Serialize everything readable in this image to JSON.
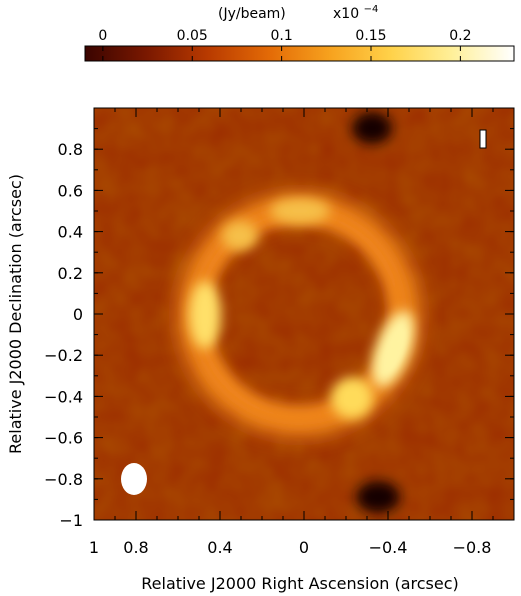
{
  "colorbar": {
    "unit_label": "(Jy/beam)",
    "scale_label": "x10",
    "scale_exponent": "−4",
    "ticks": [
      {
        "value": 0,
        "label": "0"
      },
      {
        "value": 0.05,
        "label": "0.05"
      },
      {
        "value": 0.1,
        "label": "0.1"
      },
      {
        "value": 0.15,
        "label": "0.15"
      },
      {
        "value": 0.2,
        "label": "0.2"
      }
    ],
    "range": [
      -0.01,
      0.23
    ],
    "colormap": [
      "#3a0400",
      "#7a1800",
      "#b83a00",
      "#e36a06",
      "#f7a21e",
      "#ffd24a",
      "#fff09a",
      "#ffffff"
    ]
  },
  "map": {
    "xlabel": "Relative J2000 Right Ascension (arcsec)",
    "ylabel": "Relative J2000 Declination (arcsec)",
    "x_range": [
      1.0,
      -1.0
    ],
    "y_range": [
      -1.0,
      1.0
    ],
    "x_ticks": [
      {
        "value": 1.0,
        "label": "1"
      },
      {
        "value": 0.8,
        "label": "0.8"
      },
      {
        "value": 0.4,
        "label": "0.4"
      },
      {
        "value": 0.0,
        "label": "0"
      },
      {
        "value": -0.4,
        "label": "−0.4"
      },
      {
        "value": -0.8,
        "label": "−0.8"
      }
    ],
    "y_ticks": [
      {
        "value": 0.8,
        "label": "0.8"
      },
      {
        "value": 0.6,
        "label": "0.6"
      },
      {
        "value": 0.4,
        "label": "0.4"
      },
      {
        "value": 0.2,
        "label": "0.2"
      },
      {
        "value": 0.0,
        "label": "0"
      },
      {
        "value": -0.2,
        "label": "−0.2"
      },
      {
        "value": -0.4,
        "label": "−0.4"
      },
      {
        "value": -0.6,
        "label": "−0.6"
      },
      {
        "value": -0.8,
        "label": "−0.8"
      },
      {
        "value": -1.0,
        "label": "−1"
      }
    ],
    "background_color": "#9c2c00",
    "ring_color": "#f1861a",
    "hotspot_colors": [
      "#fff3a0",
      "#ffe069",
      "#ffdb5a",
      "#f6c048"
    ],
    "dark_color": "#120000",
    "beam_color": "#ffffff"
  }
}
